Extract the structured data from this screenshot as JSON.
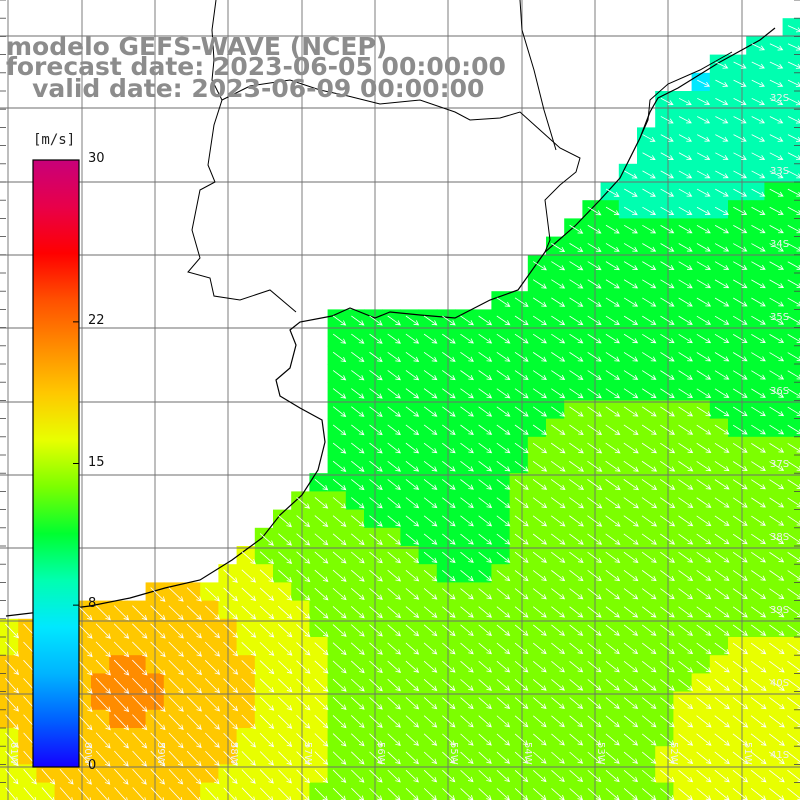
{
  "title": {
    "line1": "modelo GEFS-WAVE (NCEP)",
    "line2": "forecast date: 2023-06-05 00:00:00",
    "line3": "   valid date: 2023-06-09 00:00:00"
  },
  "colorbar": {
    "units": "[m/s]",
    "tick_labels": [
      "30",
      "22",
      "15",
      "8",
      "0"
    ],
    "ticks": [
      30,
      22,
      15,
      8,
      0
    ],
    "max": 30,
    "min": 0,
    "colors": [
      "#1400ff",
      "#0060ff",
      "#00b4ff",
      "#00e8ff",
      "#00ffb0",
      "#00ff30",
      "#7cff00",
      "#e8ff00",
      "#ffc800",
      "#ff8c00",
      "#ff5000",
      "#ff0000",
      "#e8004a",
      "#c8007a"
    ]
  },
  "lat_labels": [
    "32S",
    "33S",
    "34S",
    "35S",
    "36S",
    "37S",
    "38S",
    "39S",
    "40S",
    "41S"
  ],
  "lon_labels": [
    "61W",
    "60W",
    "59W",
    "58W",
    "57W",
    "56W",
    "55W",
    "54W",
    "53W",
    "52W",
    "51W"
  ],
  "colors": {
    "title_gray": "#8c8c8c",
    "land": "#ffffff",
    "grid": "#777777",
    "coast": "#000000",
    "arrow": "#ffffff"
  }
}
